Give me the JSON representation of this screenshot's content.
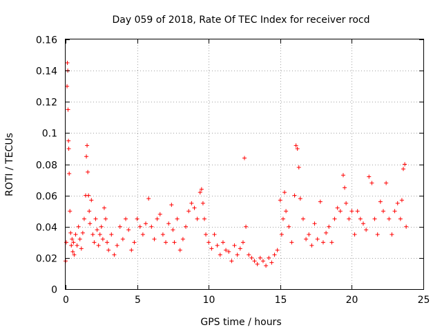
{
  "chart_data": {
    "type": "scatter",
    "title": "Day 059 of 2018, Rate Of TEC Index for receiver rocd",
    "xlabel": "GPS time / hours",
    "ylabel": "ROTI / TECUs",
    "xlim": [
      0,
      25
    ],
    "ylim": [
      0,
      0.16
    ],
    "xticks": [
      0,
      5,
      10,
      15,
      20,
      25
    ],
    "xtick_labels": [
      "0",
      "5",
      "10",
      "15",
      "20",
      "25"
    ],
    "yticks": [
      0,
      0.02,
      0.04,
      0.06,
      0.08,
      0.1,
      0.12,
      0.14,
      0.16
    ],
    "ytick_labels": [
      "0",
      "0.02",
      "0.04",
      "0.06",
      "0.08",
      "0.1",
      "0.12",
      "0.14",
      "0.16"
    ],
    "grid": true,
    "marker": "plus",
    "color": "#ff0000",
    "series": [
      {
        "name": "ROTI",
        "x": [
          0.0,
          0.05,
          0.1,
          0.12,
          0.15,
          0.17,
          0.2,
          0.22,
          0.25,
          0.3,
          0.35,
          0.4,
          0.45,
          0.5,
          0.55,
          0.6,
          0.7,
          0.8,
          0.9,
          1.0,
          1.1,
          1.2,
          1.3,
          1.4,
          1.45,
          1.5,
          1.55,
          1.6,
          1.65,
          1.7,
          1.8,
          1.9,
          2.0,
          2.1,
          2.2,
          2.3,
          2.4,
          2.5,
          2.6,
          2.7,
          2.8,
          2.9,
          3.0,
          3.2,
          3.4,
          3.6,
          3.8,
          4.0,
          4.2,
          4.4,
          4.6,
          4.8,
          5.0,
          5.2,
          5.4,
          5.6,
          5.8,
          6.0,
          6.2,
          6.4,
          6.6,
          6.8,
          7.0,
          7.2,
          7.4,
          7.5,
          7.6,
          7.8,
          8.0,
          8.2,
          8.4,
          8.6,
          8.8,
          9.0,
          9.2,
          9.4,
          9.5,
          9.6,
          9.7,
          9.8,
          10.0,
          10.2,
          10.4,
          10.6,
          10.8,
          11.0,
          11.2,
          11.4,
          11.6,
          11.8,
          12.0,
          12.2,
          12.4,
          12.5,
          12.6,
          12.8,
          13.0,
          13.2,
          13.4,
          13.6,
          13.8,
          14.0,
          14.2,
          14.4,
          14.6,
          14.8,
          15.0,
          15.1,
          15.2,
          15.3,
          15.4,
          15.6,
          15.8,
          16.0,
          16.1,
          16.2,
          16.3,
          16.4,
          16.6,
          16.8,
          17.0,
          17.2,
          17.4,
          17.6,
          17.8,
          18.0,
          18.2,
          18.4,
          18.6,
          18.8,
          19.0,
          19.2,
          19.4,
          19.5,
          19.6,
          19.8,
          20.0,
          20.2,
          20.4,
          20.6,
          20.8,
          21.0,
          21.2,
          21.4,
          21.6,
          21.8,
          22.0,
          22.2,
          22.4,
          22.6,
          22.8,
          23.0,
          23.2,
          23.4,
          23.5,
          23.6,
          23.7,
          23.8
        ],
        "y": [
          0.018,
          0.03,
          0.13,
          0.145,
          0.14,
          0.115,
          0.095,
          0.09,
          0.074,
          0.05,
          0.036,
          0.028,
          0.032,
          0.024,
          0.03,
          0.022,
          0.035,
          0.028,
          0.04,
          0.032,
          0.026,
          0.036,
          0.045,
          0.06,
          0.085,
          0.092,
          0.075,
          0.06,
          0.05,
          0.042,
          0.057,
          0.035,
          0.03,
          0.045,
          0.038,
          0.028,
          0.035,
          0.04,
          0.032,
          0.052,
          0.045,
          0.03,
          0.025,
          0.035,
          0.022,
          0.028,
          0.04,
          0.032,
          0.045,
          0.038,
          0.025,
          0.03,
          0.045,
          0.04,
          0.035,
          0.042,
          0.058,
          0.04,
          0.032,
          0.045,
          0.048,
          0.035,
          0.03,
          0.042,
          0.054,
          0.038,
          0.03,
          0.045,
          0.025,
          0.032,
          0.04,
          0.05,
          0.055,
          0.052,
          0.045,
          0.062,
          0.064,
          0.055,
          0.045,
          0.035,
          0.03,
          0.026,
          0.035,
          0.028,
          0.022,
          0.03,
          0.025,
          0.024,
          0.018,
          0.028,
          0.022,
          0.026,
          0.03,
          0.084,
          0.04,
          0.022,
          0.02,
          0.018,
          0.016,
          0.02,
          0.018,
          0.015,
          0.02,
          0.017,
          0.022,
          0.025,
          0.057,
          0.035,
          0.045,
          0.062,
          0.05,
          0.04,
          0.03,
          0.06,
          0.092,
          0.09,
          0.078,
          0.058,
          0.045,
          0.032,
          0.035,
          0.028,
          0.042,
          0.032,
          0.056,
          0.03,
          0.036,
          0.04,
          0.03,
          0.045,
          0.052,
          0.05,
          0.073,
          0.065,
          0.055,
          0.045,
          0.05,
          0.035,
          0.05,
          0.045,
          0.042,
          0.038,
          0.072,
          0.068,
          0.045,
          0.035,
          0.056,
          0.05,
          0.068,
          0.045,
          0.035,
          0.05,
          0.055,
          0.045,
          0.057,
          0.077,
          0.08,
          0.04
        ]
      }
    ]
  }
}
